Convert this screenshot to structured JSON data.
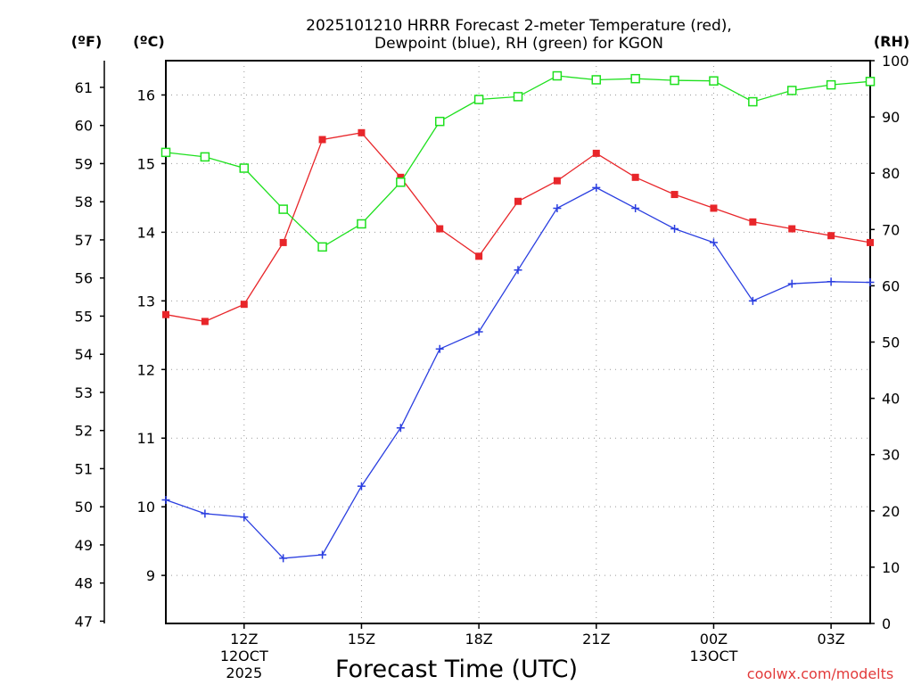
{
  "chart_data": {
    "type": "line",
    "title_line1": "2025101210 HRRR Forecast 2-meter Temperature (red),",
    "title_line2": "Dewpoint (blue), RH (green) for KGON",
    "xlabel": "Forecast Time (UTC)",
    "watermark": "coolwx.com/modelts",
    "units": {
      "f": "(ºF)",
      "c": "(ºC)",
      "rh": "(RH)"
    },
    "x": [
      10,
      11,
      12,
      13,
      14,
      15,
      16,
      17,
      18,
      19,
      20,
      21,
      22,
      23,
      24,
      25,
      26,
      27,
      28
    ],
    "xlim": [
      10,
      28
    ],
    "x_ticks": [
      {
        "x": 12,
        "label": "12Z",
        "sub1": "12OCT",
        "sub2": "2025"
      },
      {
        "x": 15,
        "label": "15Z",
        "sub1": "",
        "sub2": ""
      },
      {
        "x": 18,
        "label": "18Z",
        "sub1": "",
        "sub2": ""
      },
      {
        "x": 21,
        "label": "21Z",
        "sub1": "",
        "sub2": ""
      },
      {
        "x": 24,
        "label": "00Z",
        "sub1": "13OCT",
        "sub2": ""
      },
      {
        "x": 27,
        "label": "03Z",
        "sub1": "",
        "sub2": ""
      }
    ],
    "celsius_axis": {
      "range": [
        8.3,
        16.5
      ],
      "ticks": [
        9,
        10,
        11,
        12,
        13,
        14,
        15,
        16
      ]
    },
    "fahrenheit_axis": {
      "range": [
        46.94,
        61.7
      ],
      "ticks": [
        47,
        48,
        49,
        50,
        51,
        52,
        53,
        54,
        55,
        56,
        57,
        58,
        59,
        60,
        61
      ]
    },
    "rh_axis": {
      "range": [
        0,
        100
      ],
      "ticks": [
        0,
        10,
        20,
        30,
        40,
        50,
        60,
        70,
        80,
        90,
        100
      ]
    },
    "series": [
      {
        "name": "Temperature",
        "axis": "c",
        "color": "#e8262a",
        "marker": "square-filled",
        "values": [
          12.8,
          12.7,
          12.95,
          13.85,
          15.35,
          15.45,
          14.8,
          14.05,
          13.65,
          14.45,
          14.75,
          15.15,
          14.8,
          14.55,
          14.35,
          14.15,
          14.05,
          13.95,
          13.85
        ]
      },
      {
        "name": "Dewpoint",
        "axis": "c",
        "color": "#2a3ee0",
        "marker": "plus",
        "values": [
          10.1,
          9.9,
          9.85,
          9.25,
          9.3,
          10.3,
          11.15,
          12.3,
          12.55,
          13.45,
          14.35,
          14.65,
          14.35,
          14.05,
          13.85,
          13.0,
          13.25,
          13.28,
          13.27
        ]
      },
      {
        "name": "RH",
        "axis": "rh",
        "color": "#1ee01e",
        "marker": "square-open",
        "values": [
          83.7,
          82.9,
          80.9,
          73.6,
          66.9,
          71.0,
          78.4,
          89.2,
          93.1,
          93.6,
          97.3,
          96.6,
          96.8,
          96.5,
          96.4,
          92.7,
          94.7,
          95.7,
          96.3
        ]
      }
    ]
  }
}
